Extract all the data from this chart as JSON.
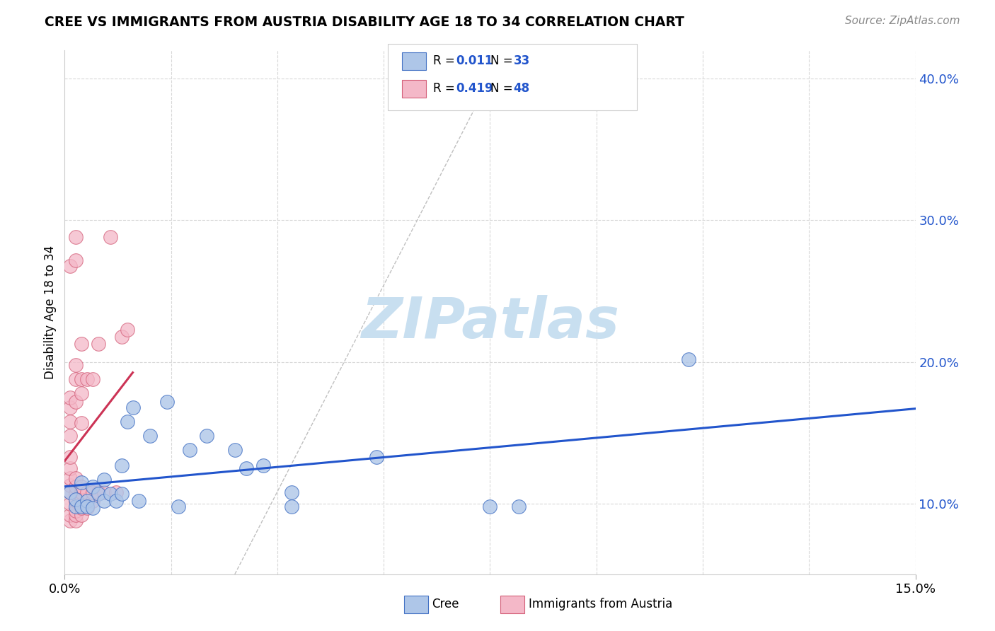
{
  "title": "CREE VS IMMIGRANTS FROM AUSTRIA DISABILITY AGE 18 TO 34 CORRELATION CHART",
  "source": "Source: ZipAtlas.com",
  "ylabel": "Disability Age 18 to 34",
  "xlim": [
    0.0,
    0.15
  ],
  "ylim": [
    0.05,
    0.42
  ],
  "yticks": [
    0.1,
    0.2,
    0.3,
    0.4
  ],
  "ytick_labels": [
    "10.0%",
    "20.0%",
    "30.0%",
    "40.0%"
  ],
  "cree_color": "#aec6e8",
  "cree_edge_color": "#4472c4",
  "austria_color": "#f4b8c8",
  "austria_edge_color": "#d4607a",
  "trend_cree_color": "#2255cc",
  "trend_austria_color": "#cc3355",
  "ref_line_color": "#c0c0c0",
  "watermark": "ZIPatlas",
  "watermark_color": "#c8dff0",
  "background_color": "#ffffff",
  "grid_color": "#d8d8d8",
  "legend_R1": "0.011",
  "legend_N1": "33",
  "legend_R2": "0.419",
  "legend_N2": "48",
  "legend_val_color": "#2255cc",
  "cree_scatter": [
    [
      0.001,
      0.108
    ],
    [
      0.002,
      0.098
    ],
    [
      0.002,
      0.103
    ],
    [
      0.003,
      0.115
    ],
    [
      0.003,
      0.098
    ],
    [
      0.004,
      0.102
    ],
    [
      0.004,
      0.098
    ],
    [
      0.005,
      0.112
    ],
    [
      0.005,
      0.097
    ],
    [
      0.006,
      0.107
    ],
    [
      0.007,
      0.102
    ],
    [
      0.007,
      0.117
    ],
    [
      0.008,
      0.107
    ],
    [
      0.009,
      0.102
    ],
    [
      0.01,
      0.127
    ],
    [
      0.01,
      0.107
    ],
    [
      0.011,
      0.158
    ],
    [
      0.012,
      0.168
    ],
    [
      0.013,
      0.102
    ],
    [
      0.015,
      0.148
    ],
    [
      0.018,
      0.172
    ],
    [
      0.02,
      0.098
    ],
    [
      0.022,
      0.138
    ],
    [
      0.025,
      0.148
    ],
    [
      0.03,
      0.138
    ],
    [
      0.032,
      0.125
    ],
    [
      0.035,
      0.127
    ],
    [
      0.04,
      0.098
    ],
    [
      0.04,
      0.108
    ],
    [
      0.055,
      0.133
    ],
    [
      0.075,
      0.098
    ],
    [
      0.08,
      0.098
    ],
    [
      0.11,
      0.202
    ]
  ],
  "austria_scatter": [
    [
      0.001,
      0.088
    ],
    [
      0.001,
      0.092
    ],
    [
      0.001,
      0.1
    ],
    [
      0.001,
      0.108
    ],
    [
      0.001,
      0.113
    ],
    [
      0.001,
      0.118
    ],
    [
      0.001,
      0.125
    ],
    [
      0.001,
      0.133
    ],
    [
      0.001,
      0.148
    ],
    [
      0.001,
      0.158
    ],
    [
      0.001,
      0.168
    ],
    [
      0.001,
      0.175
    ],
    [
      0.001,
      0.268
    ],
    [
      0.002,
      0.088
    ],
    [
      0.002,
      0.092
    ],
    [
      0.002,
      0.095
    ],
    [
      0.002,
      0.102
    ],
    [
      0.002,
      0.107
    ],
    [
      0.002,
      0.112
    ],
    [
      0.002,
      0.118
    ],
    [
      0.002,
      0.172
    ],
    [
      0.002,
      0.188
    ],
    [
      0.002,
      0.198
    ],
    [
      0.002,
      0.272
    ],
    [
      0.002,
      0.288
    ],
    [
      0.003,
      0.092
    ],
    [
      0.003,
      0.097
    ],
    [
      0.003,
      0.102
    ],
    [
      0.003,
      0.108
    ],
    [
      0.003,
      0.112
    ],
    [
      0.003,
      0.157
    ],
    [
      0.003,
      0.178
    ],
    [
      0.003,
      0.188
    ],
    [
      0.003,
      0.213
    ],
    [
      0.004,
      0.097
    ],
    [
      0.004,
      0.102
    ],
    [
      0.004,
      0.108
    ],
    [
      0.004,
      0.188
    ],
    [
      0.005,
      0.102
    ],
    [
      0.005,
      0.108
    ],
    [
      0.005,
      0.188
    ],
    [
      0.006,
      0.108
    ],
    [
      0.006,
      0.213
    ],
    [
      0.007,
      0.108
    ],
    [
      0.008,
      0.288
    ],
    [
      0.009,
      0.108
    ],
    [
      0.01,
      0.218
    ],
    [
      0.011,
      0.223
    ]
  ],
  "ref_line_x": [
    0.03,
    0.075
  ],
  "ref_line_y": [
    0.05,
    0.4
  ]
}
